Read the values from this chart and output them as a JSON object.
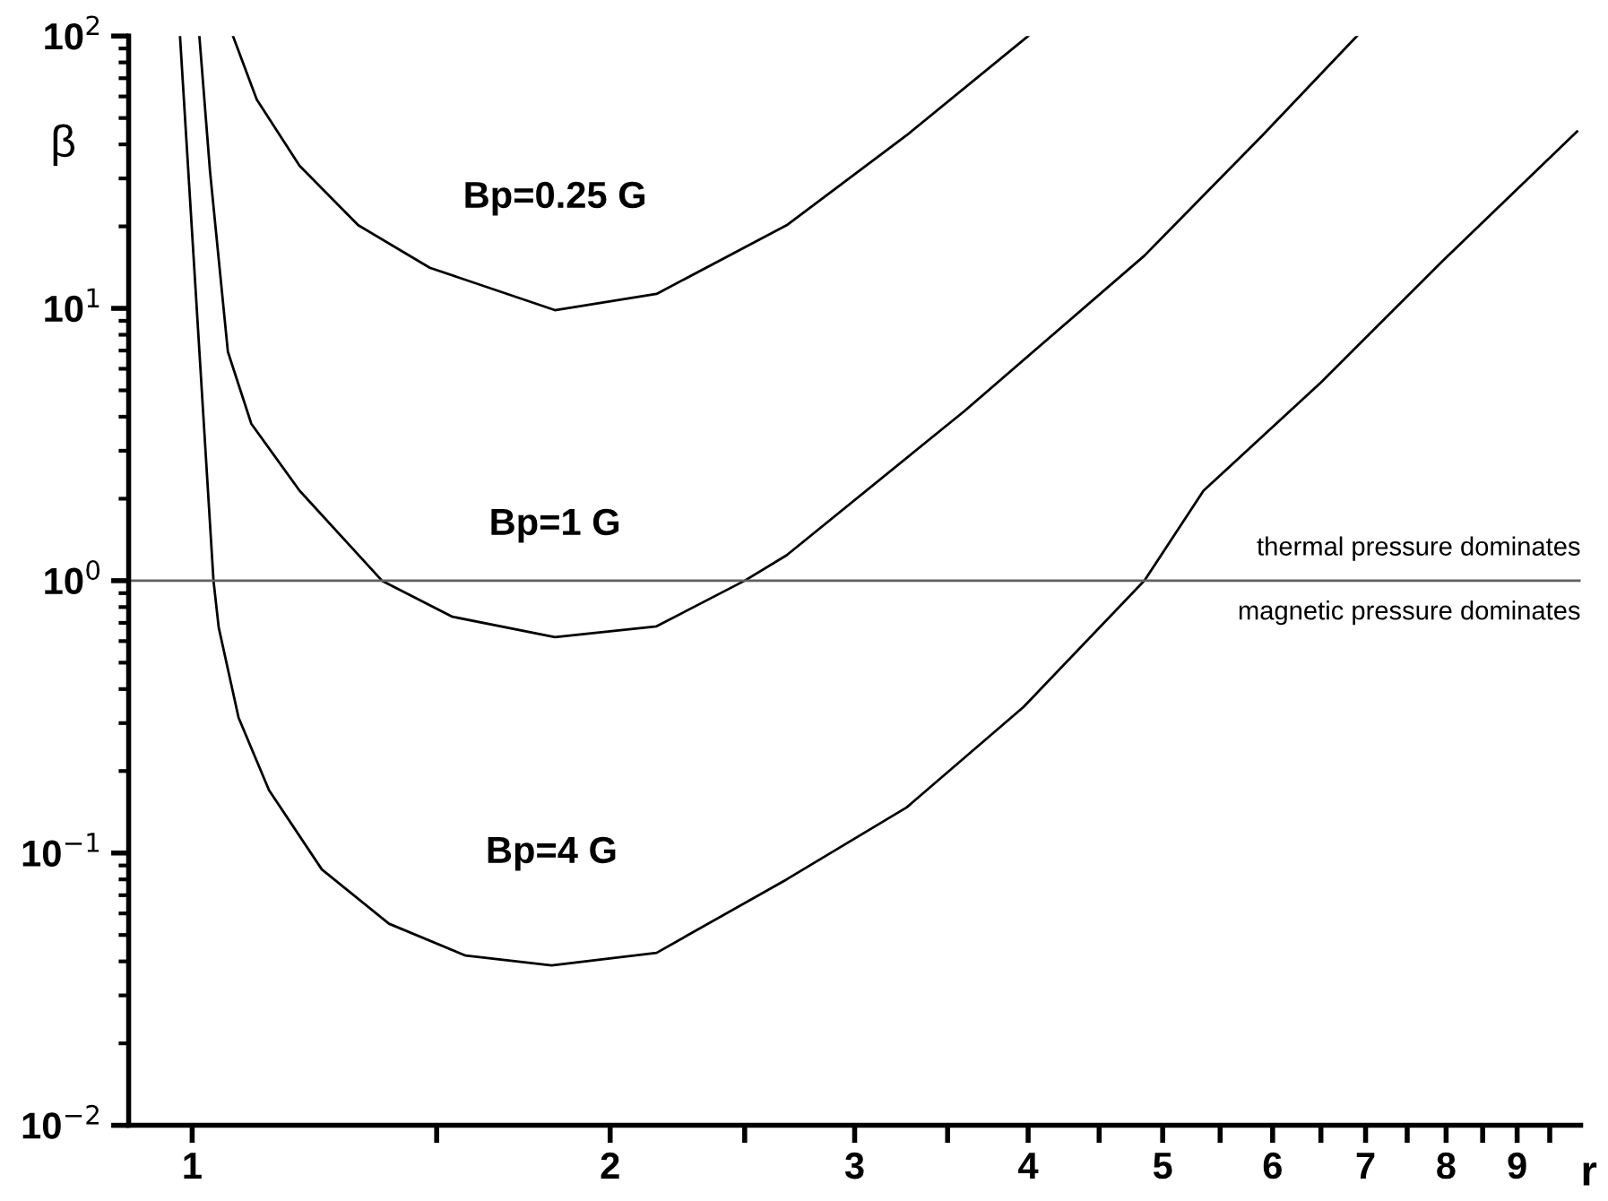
{
  "chart_data": {
    "type": "line",
    "xlabel": "r",
    "ylabel": "β",
    "log": "xy",
    "grid": false,
    "legend": false,
    "marker": "none",
    "line_style": "solid",
    "xlim": [
      0.9,
      10
    ],
    "ylim": [
      0.01,
      100
    ],
    "xticks": [
      1,
      2,
      3,
      4,
      5,
      6,
      7,
      8,
      9,
      {
        "value": 1.5,
        "label": null
      },
      {
        "value": 2.5,
        "label": null
      },
      {
        "value": 3.5,
        "label": null
      },
      {
        "value": 4.5,
        "label": null
      },
      {
        "value": 5.5,
        "label": null
      },
      {
        "value": 6.5,
        "label": null
      },
      {
        "value": 7.5,
        "label": null
      },
      {
        "value": 8.5,
        "label": null
      },
      {
        "value": 9.5,
        "label": null
      }
    ],
    "yticks": [
      {
        "value": 0.01,
        "label": "10$^{−2}$"
      },
      {
        "value": 0.1,
        "label": "10$^{−1}$"
      },
      {
        "value": 1,
        "label": "10$^{0}$"
      },
      {
        "value": 10,
        "label": "10$^{1}$"
      },
      {
        "value": 100,
        "label": "10$^{2}$"
      }
    ],
    "series": [
      {
        "name": "Bp=0.25 G",
        "color": "#000000",
        "x": [
          1.07,
          1.113,
          1.195,
          1.317,
          1.483,
          1.825,
          2.16,
          2.68,
          3.27,
          4.0
        ],
        "values": [
          100,
          58.5,
          33.4,
          20.2,
          14.1,
          9.85,
          11.3,
          20.2,
          43.2,
          100
        ]
      },
      {
        "name": "Bp=1 G",
        "color": "#000000",
        "x": [
          1.012,
          1.03,
          1.061,
          1.103,
          1.195,
          1.37,
          1.54,
          1.825,
          2.16,
          2.5,
          2.68,
          3.6,
          4.85,
          5.9,
          6.9
        ],
        "values": [
          100,
          31.9,
          6.93,
          3.77,
          2.14,
          1.0,
          0.737,
          0.62,
          0.68,
          1.0,
          1.24,
          4.2,
          15.6,
          43.2,
          100
        ]
      },
      {
        "name": "Bp=4 G",
        "color": "#000000",
        "x": [
          0.98,
          1.036,
          1.045,
          1.08,
          1.136,
          1.24,
          1.386,
          1.574,
          1.815,
          2.16,
          2.68,
          3.27,
          3.97,
          4.85,
          5.35,
          6.5,
          7.95,
          9.94
        ],
        "values": [
          100,
          1.0,
          0.673,
          0.314,
          0.17,
          0.087,
          0.055,
          0.042,
          0.0387,
          0.043,
          0.08,
          0.147,
          0.344,
          1.0,
          2.14,
          5.34,
          14.9,
          44.6
        ]
      }
    ],
    "ref_lines": [
      {
        "axis": "y",
        "value": 1,
        "color": "#606060"
      }
    ],
    "annotations": [
      "thermal pressure dominates",
      "magnetic pressure dominates"
    ]
  }
}
